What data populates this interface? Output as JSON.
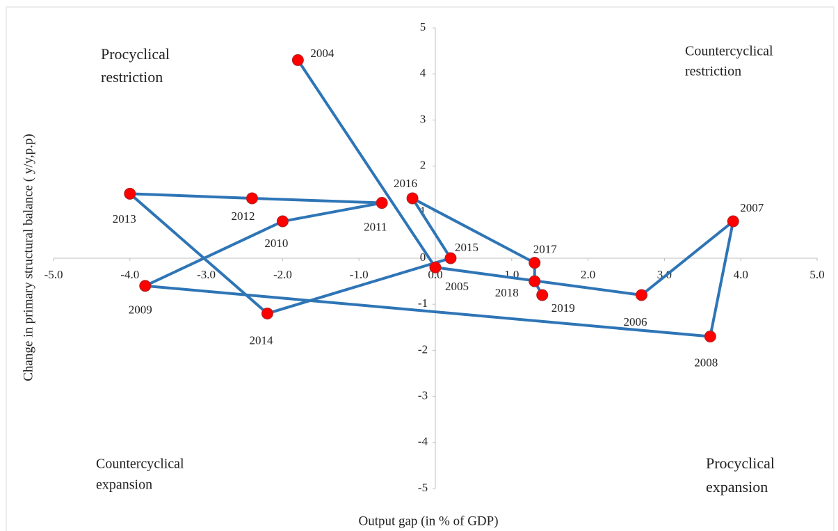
{
  "chart_data": {
    "type": "scatter",
    "x_label": "Output gap (in % of GDP)",
    "y_label": "Change in primary structural balance ( y/y,p.p)",
    "point_labels": [
      "2004",
      "2005",
      "2006",
      "2007",
      "2008",
      "2009",
      "2010",
      "2011",
      "2012",
      "2013",
      "2014",
      "2015",
      "2016",
      "2017",
      "2018",
      "2019"
    ],
    "x": [
      -1.8,
      0.0,
      2.7,
      3.9,
      3.6,
      -3.8,
      -2.0,
      -0.7,
      -2.4,
      -4.0,
      -2.2,
      0.2,
      -0.3,
      1.3,
      1.3,
      1.4
    ],
    "values": [
      4.3,
      -0.2,
      -0.8,
      0.8,
      -1.7,
      -0.6,
      0.8,
      1.2,
      1.3,
      1.4,
      -1.2,
      0.0,
      1.3,
      -0.1,
      -0.5,
      -0.8
    ],
    "line_color": "#2e75b6",
    "marker_color": "#ff0000",
    "xlim": [
      -5,
      5
    ],
    "ylim": [
      -5,
      5
    ],
    "xticks": [
      {
        "value": -5,
        "label": "-5.0"
      },
      {
        "value": -4,
        "label": "-4.0"
      },
      {
        "value": -3,
        "label": "-3.0"
      },
      {
        "value": -2,
        "label": "-2.0"
      },
      {
        "value": -1,
        "label": "-1.0"
      },
      {
        "value": 0,
        "label": "0.0"
      },
      {
        "value": 1,
        "label": "1.0"
      },
      {
        "value": 2,
        "label": "2.0"
      },
      {
        "value": 3,
        "label": "3.0"
      },
      {
        "value": 4,
        "label": "4.0"
      },
      {
        "value": 5,
        "label": "5.0"
      }
    ],
    "yticks": [
      -5,
      -4,
      -3,
      -2,
      -1,
      0,
      1,
      2,
      3,
      4,
      5
    ],
    "annotations": [
      [
        "Procyclical",
        "restriction"
      ],
      [
        "Countercyclical",
        "restriction"
      ],
      [
        "Countercyclical",
        "expansion"
      ],
      [
        "Procyclical",
        "expansion"
      ]
    ]
  }
}
